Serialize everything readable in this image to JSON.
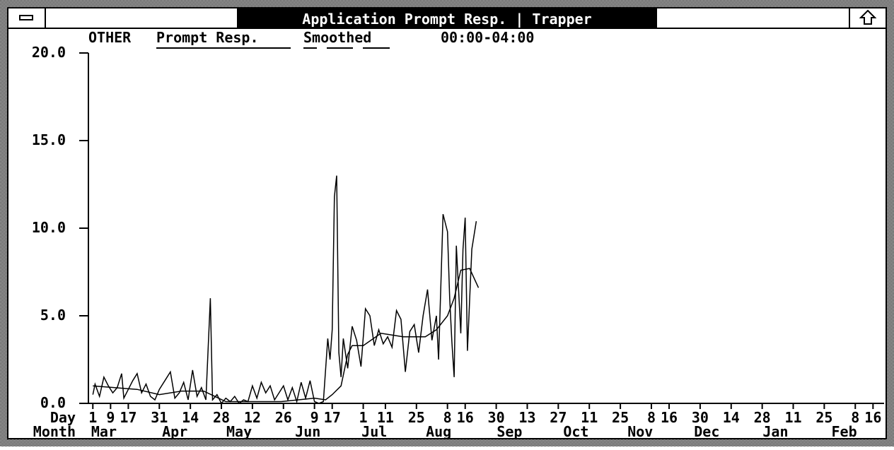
{
  "window": {
    "title": "Application Prompt Resp. | Trapper"
  },
  "chart_data": {
    "type": "line",
    "label": "OTHER",
    "time_range": "00:00-04:00",
    "x_row_labels": [
      "Day",
      "Month"
    ],
    "xlim": [
      -2,
      357
    ],
    "xticks": [
      {
        "value": 0,
        "label": "1"
      },
      {
        "value": 8,
        "label": "9"
      },
      {
        "value": 16,
        "label": "17"
      },
      {
        "value": 30,
        "label": "31"
      },
      {
        "value": 44,
        "label": "14"
      },
      {
        "value": 58,
        "label": "28"
      },
      {
        "value": 72,
        "label": "12"
      },
      {
        "value": 86,
        "label": "26"
      },
      {
        "value": 100,
        "label": "9"
      },
      {
        "value": 108,
        "label": "17"
      },
      {
        "value": 122,
        "label": "1"
      },
      {
        "value": 132,
        "label": "11"
      },
      {
        "value": 146,
        "label": "25"
      },
      {
        "value": 160,
        "label": "8"
      },
      {
        "value": 168,
        "label": "16"
      },
      {
        "value": 182,
        "label": "30"
      },
      {
        "value": 196,
        "label": "13"
      },
      {
        "value": 210,
        "label": "27"
      },
      {
        "value": 224,
        "label": "11"
      },
      {
        "value": 238,
        "label": "25"
      },
      {
        "value": 252,
        "label": "8"
      },
      {
        "value": 260,
        "label": "16"
      },
      {
        "value": 274,
        "label": "30"
      },
      {
        "value": 288,
        "label": "14"
      },
      {
        "value": 302,
        "label": "28"
      },
      {
        "value": 316,
        "label": "11"
      },
      {
        "value": 330,
        "label": "25"
      },
      {
        "value": 344,
        "label": "8"
      },
      {
        "value": 352,
        "label": "16"
      }
    ],
    "month_ticks": [
      {
        "value": 5,
        "label": "Mar"
      },
      {
        "value": 37,
        "label": "Apr"
      },
      {
        "value": 66,
        "label": "May"
      },
      {
        "value": 97,
        "label": "Jun"
      },
      {
        "value": 127,
        "label": "Jul"
      },
      {
        "value": 156,
        "label": "Aug"
      },
      {
        "value": 188,
        "label": "Sep"
      },
      {
        "value": 218,
        "label": "Oct"
      },
      {
        "value": 247,
        "label": "Nov"
      },
      {
        "value": 277,
        "label": "Dec"
      },
      {
        "value": 308,
        "label": "Jan"
      },
      {
        "value": 339,
        "label": "Feb"
      }
    ],
    "ylim": [
      0,
      20
    ],
    "yticks": [
      {
        "value": 0,
        "label": "0.0"
      },
      {
        "value": 5,
        "label": "5.0"
      },
      {
        "value": 10,
        "label": "10.0"
      },
      {
        "value": 15,
        "label": "15.0"
      },
      {
        "value": 20,
        "label": "20.0"
      }
    ],
    "series": [
      {
        "name": "Prompt Resp.",
        "color": "#000000",
        "x": [
          0,
          1,
          3,
          5,
          7,
          9,
          11,
          13,
          14,
          16,
          18,
          20,
          22,
          24,
          26,
          28,
          30,
          33,
          35,
          37,
          39,
          41,
          43,
          45,
          47,
          49,
          51,
          53,
          54,
          56,
          58,
          60,
          62,
          64,
          66,
          68,
          70,
          72,
          74,
          76,
          78,
          80,
          82,
          84,
          86,
          88,
          90,
          92,
          94,
          96,
          98,
          100,
          102,
          104,
          106,
          107,
          108,
          109,
          110,
          111,
          112,
          113,
          115,
          117,
          119,
          121,
          123,
          125,
          127,
          129,
          131,
          133,
          135,
          137,
          139,
          141,
          143,
          145,
          147,
          149,
          151,
          153,
          155,
          156,
          158,
          160,
          161,
          162,
          163,
          164,
          166,
          167,
          168,
          169,
          171,
          173
        ],
        "values": [
          0.5,
          1.1,
          0.4,
          1.5,
          1.0,
          0.6,
          0.9,
          1.7,
          0.3,
          0.8,
          1.3,
          1.7,
          0.6,
          1.1,
          0.4,
          0.2,
          0.8,
          1.4,
          1.8,
          0.3,
          0.6,
          1.2,
          0.2,
          1.9,
          0.4,
          0.9,
          0.2,
          6.0,
          0.2,
          0.5,
          0.0,
          0.3,
          0.1,
          0.4,
          0.0,
          0.2,
          0.1,
          1.0,
          0.3,
          1.2,
          0.6,
          1.0,
          0.2,
          0.6,
          1.0,
          0.2,
          0.9,
          0.1,
          1.2,
          0.3,
          1.3,
          0.1,
          0.0,
          0.1,
          3.7,
          2.5,
          4.2,
          11.8,
          13.0,
          2.9,
          1.5,
          3.7,
          2.0,
          4.4,
          3.6,
          2.1,
          5.4,
          5.0,
          3.3,
          4.2,
          3.4,
          3.8,
          3.2,
          5.3,
          4.8,
          1.8,
          4.1,
          4.5,
          2.9,
          5.0,
          6.5,
          3.6,
          5.0,
          2.5,
          10.8,
          9.8,
          6.0,
          3.5,
          1.5,
          9.0,
          4.0,
          8.8,
          10.6,
          3.0,
          8.8,
          10.4
        ]
      },
      {
        "name": "Smoothed",
        "color": "#000000",
        "x": [
          0,
          10,
          20,
          30,
          40,
          50,
          55,
          60,
          70,
          85,
          100,
          105,
          108,
          112,
          115,
          117,
          122,
          130,
          140,
          150,
          155,
          160,
          163,
          166,
          170,
          174
        ],
        "values": [
          1.0,
          0.9,
          0.8,
          0.5,
          0.7,
          0.7,
          0.4,
          0.1,
          0.1,
          0.1,
          0.3,
          0.2,
          0.5,
          1.0,
          2.8,
          3.3,
          3.3,
          4.0,
          3.8,
          3.8,
          4.2,
          5.0,
          6.0,
          7.6,
          7.7,
          6.6
        ]
      }
    ]
  }
}
